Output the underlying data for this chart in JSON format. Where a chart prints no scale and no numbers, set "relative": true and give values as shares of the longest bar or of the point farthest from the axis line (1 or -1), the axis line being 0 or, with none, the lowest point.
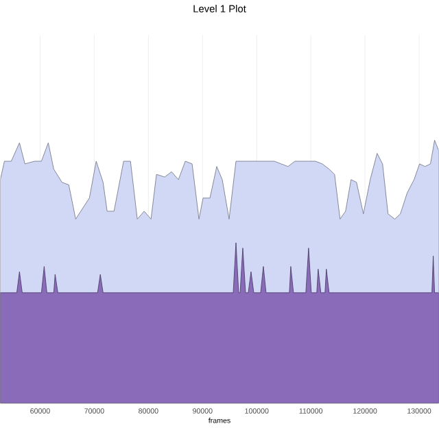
{
  "chart_data": {
    "type": "area",
    "title": "Level 1 Plot",
    "xlabel": "frames",
    "relative": true,
    "grid": true,
    "xlim": [
      52650,
      133610
    ],
    "xticks": [
      60000,
      70000,
      80000,
      90000,
      100000,
      110000,
      120000,
      130000
    ],
    "series": [
      {
        "color": "#d0d8f5",
        "x": [
          52650,
          53410,
          54670,
          56190,
          57200,
          58980,
          60240,
          61510,
          62520,
          64040,
          65300,
          66570,
          67830,
          69100,
          70360,
          71630,
          72380,
          73650,
          75420,
          76690,
          77950,
          79220,
          80480,
          81490,
          83010,
          84280,
          85540,
          86810,
          88070,
          89340,
          90090,
          91360,
          92620,
          93640,
          94900,
          96170,
          97680,
          99460,
          100720,
          101990,
          103250,
          104520,
          105780,
          107050,
          108310,
          109580,
          110840,
          112110,
          113370,
          114380,
          115390,
          116410,
          117420,
          118430,
          119700,
          120960,
          122230,
          123240,
          124250,
          125510,
          126530,
          127790,
          129060,
          130070,
          131080,
          132090,
          132850,
          133610
        ],
        "values": [
          0.85,
          0.92,
          0.92,
          0.99,
          0.91,
          0.92,
          0.92,
          0.99,
          0.89,
          0.84,
          0.83,
          0.7,
          0.74,
          0.78,
          0.92,
          0.84,
          0.73,
          0.73,
          0.92,
          0.92,
          0.7,
          0.73,
          0.7,
          0.87,
          0.86,
          0.88,
          0.85,
          0.92,
          0.91,
          0.7,
          0.78,
          0.78,
          0.9,
          0.85,
          0.7,
          0.92,
          0.92,
          0.92,
          0.92,
          0.92,
          0.92,
          0.91,
          0.9,
          0.92,
          0.92,
          0.92,
          0.92,
          0.91,
          0.89,
          0.87,
          0.7,
          0.73,
          0.85,
          0.84,
          0.72,
          0.85,
          0.95,
          0.91,
          0.72,
          0.7,
          0.72,
          0.8,
          0.85,
          0.91,
          0.9,
          0.91,
          1.0,
          0.96
        ]
      },
      {
        "color": "#8a6bb9",
        "x": [
          52650,
          55690,
          56190,
          56700,
          60240,
          60750,
          61250,
          62520,
          62770,
          63280,
          70610,
          71120,
          71630,
          95660,
          96170,
          96670,
          96930,
          97430,
          97940,
          98440,
          98950,
          99460,
          100720,
          101230,
          101730,
          106030,
          106290,
          106790,
          109070,
          109580,
          110080,
          111090,
          111350,
          111850,
          112610,
          112860,
          113370,
          132350,
          132600,
          132850,
          133610
        ],
        "values": [
          0.42,
          0.42,
          0.5,
          0.42,
          0.42,
          0.52,
          0.42,
          0.42,
          0.49,
          0.42,
          0.42,
          0.49,
          0.42,
          0.42,
          0.61,
          0.42,
          0.42,
          0.59,
          0.42,
          0.42,
          0.5,
          0.42,
          0.42,
          0.52,
          0.42,
          0.42,
          0.52,
          0.42,
          0.42,
          0.59,
          0.42,
          0.42,
          0.51,
          0.42,
          0.42,
          0.51,
          0.42,
          0.42,
          0.56,
          0.42,
          0.42
        ]
      }
    ]
  }
}
